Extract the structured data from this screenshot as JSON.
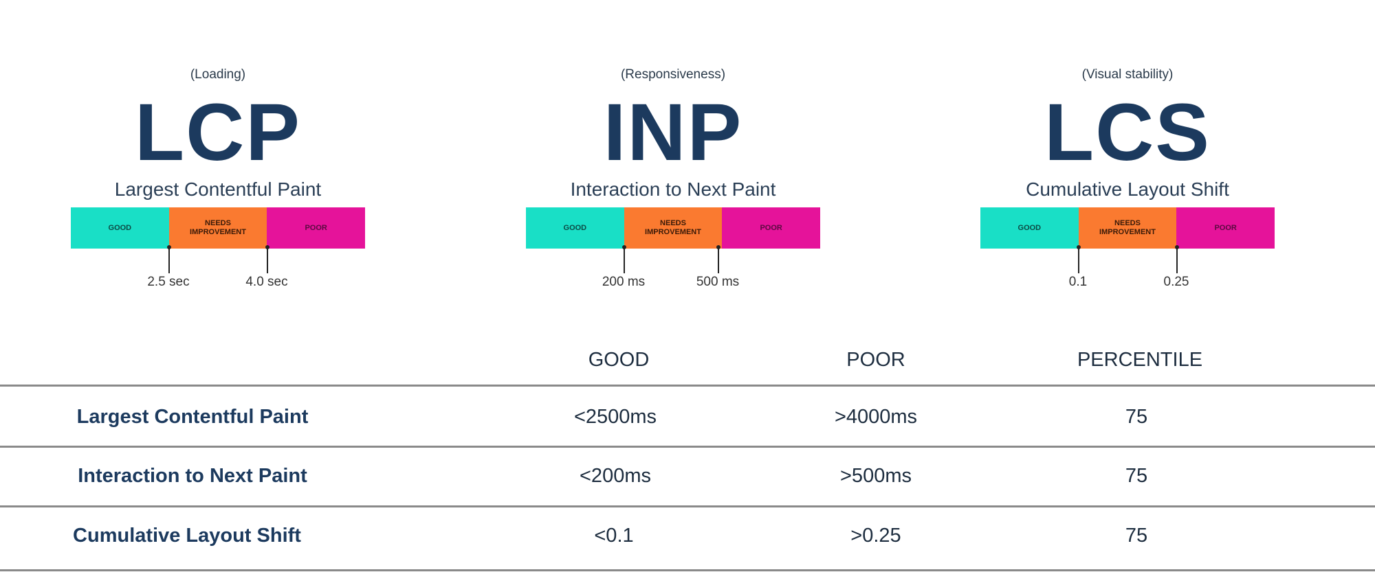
{
  "colors": {
    "good": "#19dfc6",
    "needs_improvement": "#fa7a30",
    "poor": "#e5139a",
    "text": "#1c3a5e"
  },
  "metrics": [
    {
      "category": "(Loading)",
      "abbr": "LCP",
      "name": "Largest Contentful Paint",
      "good": "GOOD",
      "needs": "NEEDS IMPROVEMENT",
      "poor": "POOR",
      "threshold1": "2.5 sec",
      "threshold2": "4.0 sec"
    },
    {
      "category": "(Responsiveness)",
      "abbr": "INP",
      "name": "Interaction to Next Paint",
      "good": "GOOD",
      "needs": "NEEDS IMPROVEMENT",
      "poor": "POOR",
      "threshold1": "200 ms",
      "threshold2": "500 ms"
    },
    {
      "category": "(Visual stability)",
      "abbr": "LCS",
      "name": "Cumulative Layout Shift",
      "good": "GOOD",
      "needs": "NEEDS IMPROVEMENT",
      "poor": "POOR",
      "threshold1": "0.1",
      "threshold2": "0.25"
    }
  ],
  "table": {
    "headers": [
      "GOOD",
      "POOR",
      "PERCENTILE"
    ],
    "rows": [
      {
        "metric": "Largest Contentful Paint",
        "good": "<2500ms",
        "poor": ">4000ms",
        "percentile": "75"
      },
      {
        "metric": "Interaction to Next Paint",
        "good": "<200ms",
        "poor": ">500ms",
        "percentile": "75"
      },
      {
        "metric": "Cumulative Layout Shift",
        "good": "<0.1",
        "poor": ">0.25",
        "percentile": "75"
      }
    ]
  }
}
